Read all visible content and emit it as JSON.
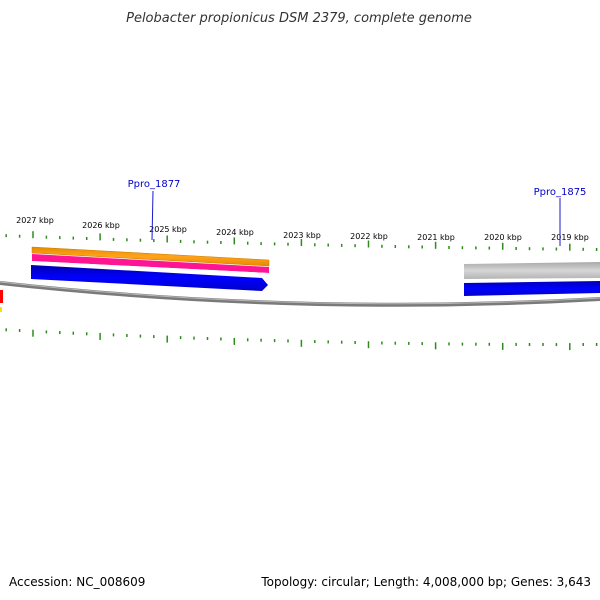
{
  "title": "Pelobacter propionicus DSM 2379, complete genome",
  "footer": {
    "accession": "Accession: NC_008609",
    "summary": "Topology: circular; Length: 4,008,000 bp; Genes: 3,643"
  },
  "colors": {
    "backbone": "#808080",
    "ticks": "#2e8b1e",
    "gene_label": "#0000cc",
    "gene_label_line": "#1a1acc",
    "forward_cds": "#0000ff",
    "orange_track": "#ff9900",
    "pink_track": "#ff1493",
    "gray_track": "#bdbdbd",
    "edge_red": "#ff0000",
    "edge_yellow": "#ffdd00"
  },
  "ticks": {
    "labels": [
      "2027 kbp",
      "2026 kbp",
      "2025 kbp",
      "2024 kbp",
      "2023 kbp",
      "2022 kbp",
      "2021 kbp",
      "2020 kbp",
      "2019 kbp"
    ]
  },
  "genes": [
    {
      "label": "Ppro_1877"
    },
    {
      "label": "Ppro_1875"
    }
  ]
}
